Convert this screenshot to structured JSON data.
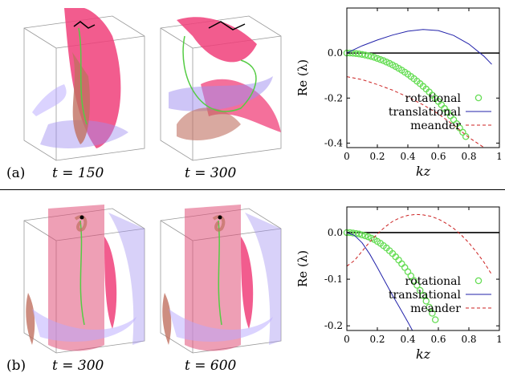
{
  "panels": [
    {
      "label": "(a)",
      "snapshots": [
        {
          "t_label": "t = 150"
        },
        {
          "t_label": "t = 300"
        }
      ],
      "chart_data": {
        "type": "line",
        "title": "",
        "xlabel": "k_z",
        "ylabel": "Re (λ)",
        "xlim": [
          0,
          1
        ],
        "ylim": [
          -0.42,
          0.2
        ],
        "xticks": [
          "0",
          "0.2",
          "0.4",
          "0.6",
          "0.8",
          "1"
        ],
        "yticks": [
          "0.0",
          "-0.2",
          "-0.4"
        ],
        "ytick_values": [
          0.0,
          -0.2,
          -0.4
        ],
        "legend_position": "bottom-right",
        "series": [
          {
            "name": "rotational",
            "style": "circles",
            "color": "#66dd55",
            "x": [
              0.0,
              0.02,
              0.04,
              0.06,
              0.08,
              0.1,
              0.12,
              0.14,
              0.16,
              0.18,
              0.2,
              0.22,
              0.24,
              0.26,
              0.28,
              0.3,
              0.32,
              0.34,
              0.36,
              0.38,
              0.4,
              0.42,
              0.44,
              0.46,
              0.48,
              0.5,
              0.52,
              0.54,
              0.56,
              0.58,
              0.6,
              0.62,
              0.64,
              0.66,
              0.68,
              0.7,
              0.72,
              0.74,
              0.76,
              0.78
            ],
            "y": [
              0.0,
              0.0,
              -0.001,
              -0.002,
              -0.004,
              -0.006,
              -0.009,
              -0.012,
              -0.015,
              -0.019,
              -0.024,
              -0.029,
              -0.034,
              -0.04,
              -0.046,
              -0.053,
              -0.06,
              -0.068,
              -0.076,
              -0.085,
              -0.094,
              -0.104,
              -0.114,
              -0.125,
              -0.136,
              -0.148,
              -0.16,
              -0.173,
              -0.187,
              -0.201,
              -0.215,
              -0.23,
              -0.246,
              -0.262,
              -0.279,
              -0.296,
              -0.314,
              -0.333,
              -0.352,
              -0.371
            ]
          },
          {
            "name": "translational",
            "style": "solid",
            "color": "#2222aa",
            "x": [
              0.0,
              0.1,
              0.2,
              0.3,
              0.4,
              0.5,
              0.6,
              0.7,
              0.8,
              0.9,
              0.95
            ],
            "y": [
              0.0,
              0.032,
              0.058,
              0.08,
              0.097,
              0.105,
              0.1,
              0.078,
              0.04,
              -0.015,
              -0.05
            ]
          },
          {
            "name": "meander",
            "style": "dashed",
            "color": "#cc2222",
            "x": [
              0.0,
              0.1,
              0.2,
              0.3,
              0.4,
              0.5,
              0.6,
              0.7,
              0.8,
              0.9
            ],
            "y": [
              -0.105,
              -0.118,
              -0.14,
              -0.165,
              -0.195,
              -0.23,
              -0.27,
              -0.32,
              -0.375,
              -0.44
            ]
          }
        ]
      }
    },
    {
      "label": "(b)",
      "snapshots": [
        {
          "t_label": "t = 300"
        },
        {
          "t_label": "t = 600"
        }
      ],
      "chart_data": {
        "type": "line",
        "title": "",
        "xlabel": "k_z",
        "ylabel": "Re (λ)",
        "xlim": [
          0,
          1
        ],
        "ylim": [
          -0.21,
          0.055
        ],
        "xticks": [
          "0",
          "0.2",
          "0.4",
          "0.6",
          "0.8",
          "1"
        ],
        "yticks": [
          "0.0",
          "-0.1",
          "-0.2"
        ],
        "ytick_values": [
          0.0,
          -0.1,
          -0.2
        ],
        "legend_position": "bottom-right",
        "series": [
          {
            "name": "rotational",
            "style": "circles",
            "color": "#66dd55",
            "x": [
              0.0,
              0.02,
              0.04,
              0.06,
              0.08,
              0.1,
              0.12,
              0.14,
              0.16,
              0.18,
              0.2,
              0.22,
              0.24,
              0.26,
              0.28,
              0.3,
              0.32,
              0.34,
              0.36,
              0.38,
              0.4,
              0.42,
              0.44,
              0.46,
              0.48,
              0.5,
              0.52,
              0.54,
              0.56,
              0.58
            ],
            "y": [
              0.0,
              0.0,
              -0.001,
              -0.002,
              -0.003,
              -0.005,
              -0.007,
              -0.009,
              -0.012,
              -0.015,
              -0.019,
              -0.023,
              -0.028,
              -0.033,
              -0.039,
              -0.045,
              -0.052,
              -0.059,
              -0.067,
              -0.075,
              -0.084,
              -0.093,
              -0.103,
              -0.113,
              -0.124,
              -0.135,
              -0.147,
              -0.16,
              -0.173,
              -0.187
            ]
          },
          {
            "name": "translational",
            "style": "solid",
            "color": "#2222aa",
            "x": [
              0.0,
              0.05,
              0.1,
              0.15,
              0.2,
              0.25,
              0.3,
              0.35,
              0.4,
              0.43
            ],
            "y": [
              0.0,
              -0.006,
              -0.022,
              -0.046,
              -0.075,
              -0.105,
              -0.135,
              -0.163,
              -0.192,
              -0.21
            ]
          },
          {
            "name": "meander",
            "style": "dashed",
            "color": "#cc2222",
            "x": [
              0.0,
              0.05,
              0.1,
              0.15,
              0.2,
              0.25,
              0.3,
              0.35,
              0.4,
              0.45,
              0.5,
              0.55,
              0.6,
              0.65,
              0.7,
              0.75,
              0.8,
              0.85,
              0.9,
              0.95
            ],
            "y": [
              -0.072,
              -0.06,
              -0.04,
              -0.02,
              -0.003,
              0.012,
              0.024,
              0.032,
              0.037,
              0.039,
              0.038,
              0.035,
              0.029,
              0.02,
              0.009,
              -0.005,
              -0.022,
              -0.042,
              -0.064,
              -0.09
            ]
          }
        ]
      }
    }
  ]
}
